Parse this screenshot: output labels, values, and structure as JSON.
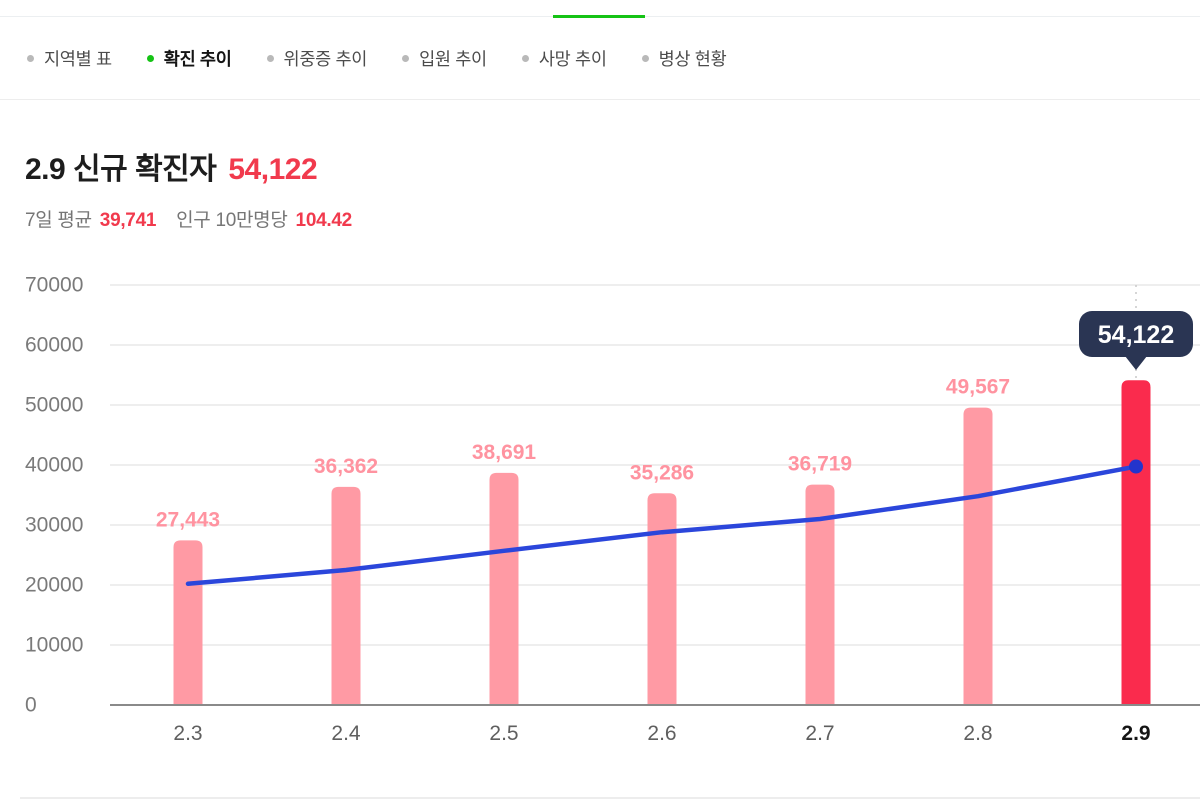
{
  "header": {
    "tabs": [
      {
        "label": "지역별 표",
        "active": false
      },
      {
        "label": "확진 추이",
        "active": true
      },
      {
        "label": "위중증 추이",
        "active": false
      },
      {
        "label": "입원 추이",
        "active": false
      },
      {
        "label": "사망 추이",
        "active": false
      },
      {
        "label": "병상 현황",
        "active": false
      }
    ]
  },
  "summary": {
    "date_title": "2.9 신규 확진자",
    "headline_value": "54,122",
    "avg_label": "7일 평균",
    "avg_value": "39,741",
    "per100k_label": "인구 10만명당",
    "per100k_value": "104.42"
  },
  "chart_data": {
    "type": "bar",
    "title": "2.9 신규 확진자 54,122",
    "categories": [
      "2.3",
      "2.4",
      "2.5",
      "2.6",
      "2.7",
      "2.8",
      "2.9"
    ],
    "series": [
      {
        "name": "신규 확진자",
        "type": "bar",
        "values": [
          27443,
          36362,
          38691,
          35286,
          36719,
          49567,
          54122
        ],
        "labels": [
          "27,443",
          "36,362",
          "38,691",
          "35,286",
          "36,719",
          "49,567",
          "54,122"
        ]
      },
      {
        "name": "7일 평균",
        "type": "line",
        "values": [
          20200,
          22500,
          25700,
          28800,
          31000,
          34800,
          39741
        ]
      }
    ],
    "ylim": [
      0,
      70000
    ],
    "yticks": [
      0,
      10000,
      20000,
      30000,
      40000,
      50000,
      60000,
      70000
    ],
    "grid": true,
    "legend": "none",
    "highlight_index": 6,
    "tooltip": {
      "value": "54,122"
    },
    "xlabel": "",
    "ylabel": ""
  },
  "colors": {
    "green": "#15c315",
    "accent_red": "#f13a4d",
    "text_gray": "#767676",
    "bar_pink": "#ff9aa4",
    "bar_red": "#fa2b4d",
    "label_pink": "#ff93a0",
    "line_blue": "#2b46db",
    "dot_blue": "#2334cc",
    "tooltip_bg": "#2a3553",
    "tooltip_text": "#ffffff",
    "grid_line": "#e9e9e9",
    "baseline": "#8a8a8a",
    "axis_text": "#7a7a7a",
    "x_text": "#5f5f5f",
    "x_text_active": "#141414",
    "guide_dotted": "#c9c9c9"
  }
}
